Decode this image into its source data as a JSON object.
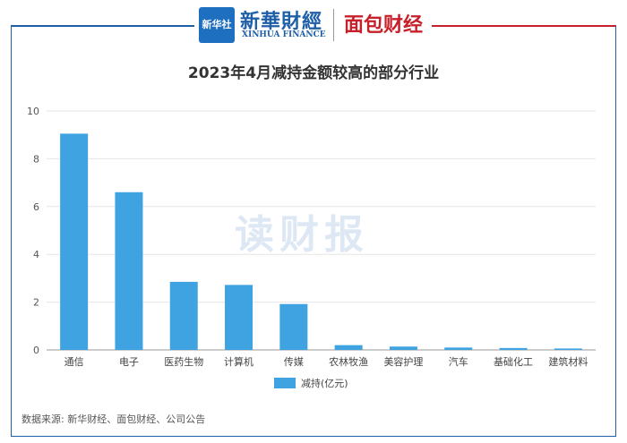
{
  "header": {
    "logo_badge": "新华社",
    "logo_main": "新華財經",
    "logo_sub": "XINHUA FINANCE",
    "logo_partner": "面包财经"
  },
  "watermark": "读财报",
  "source": "数据来源: 新华财经、面包财经、公司公告",
  "colors": {
    "bar": "#3ea3e0",
    "grid": "#e6e6e6",
    "frame_left": "#1f5fa8",
    "frame_right": "#c8202a"
  },
  "chart_data": {
    "type": "bar",
    "title": "2023年4月减持金额较高的部分行业",
    "categories": [
      "通信",
      "电子",
      "医药生物",
      "计算机",
      "传媒",
      "农林牧渔",
      "美容护理",
      "汽车",
      "基础化工",
      "建筑材料"
    ],
    "series": [
      {
        "name": "减持(亿元)",
        "values": [
          9.05,
          6.6,
          2.85,
          2.72,
          1.92,
          0.2,
          0.14,
          0.1,
          0.08,
          0.06
        ]
      }
    ],
    "yticks": [
      "0",
      "2",
      "4",
      "6",
      "8",
      "10"
    ],
    "ylim": [
      0,
      10
    ],
    "grid": true,
    "legend": "bottom-center"
  }
}
